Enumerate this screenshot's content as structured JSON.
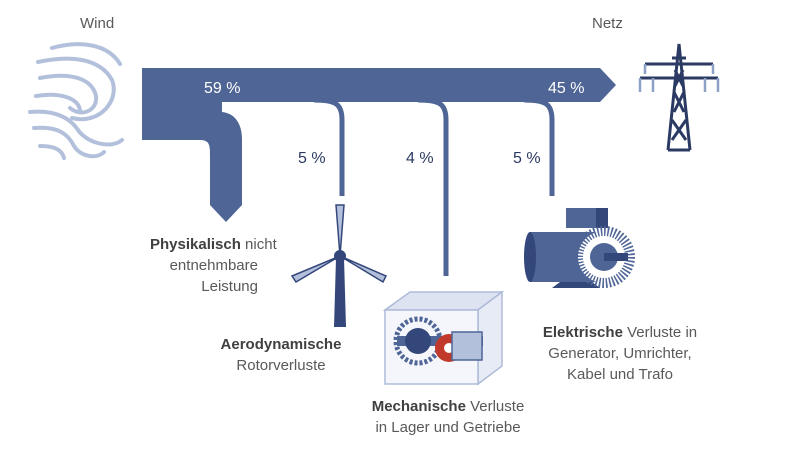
{
  "labels": {
    "wind": "Wind",
    "netz": "Netz",
    "pct_input": "59 %",
    "pct_output": "45 %",
    "pct_aero": "5 %",
    "pct_mech": "4 %",
    "pct_elec": "5 %",
    "physikalisch_bold": "Physikalisch",
    "physikalisch_rest1": " nicht",
    "physikalisch_line2": "entnehmbare",
    "physikalisch_line3": "Leistung",
    "aero_bold": "Aerodynamische",
    "aero_line2": "Rotorverluste",
    "mech_bold": "Mechanische",
    "mech_rest1": " Verluste",
    "mech_line2": "in Lager und Getriebe",
    "elec_bold": "Elektrische",
    "elec_rest1": " Verluste in",
    "elec_line2": "Generator, Umrichter,",
    "elec_line3": "Kabel und Trafo"
  },
  "colors": {
    "flow": "#4e6596",
    "flow_dark": "#34477a",
    "icon_light": "#aebbd8",
    "text": "#595959",
    "accent_red": "#c0392b"
  }
}
